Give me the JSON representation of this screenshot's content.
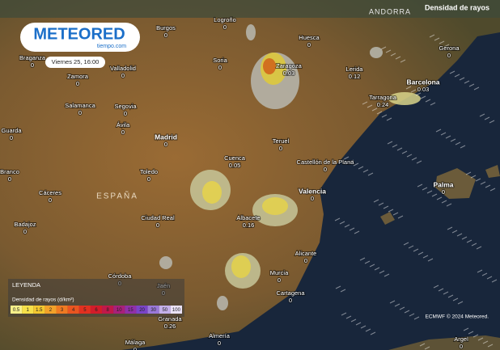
{
  "logo": {
    "brand": "METEORED",
    "site": "tiempo.com"
  },
  "timestamp": "Viernes 25, 16:00",
  "layer_title": "Densidad de rayos",
  "country_labels": [
    "ESPAÑA",
    "ANDORRA"
  ],
  "cities": [
    {
      "name": "Burgos",
      "value": 0
    },
    {
      "name": "Logroño",
      "value": 0
    },
    {
      "name": "Soria",
      "value": 0
    },
    {
      "name": "Valladolid",
      "value": 0
    },
    {
      "name": "Zamora",
      "value": 0
    },
    {
      "name": "Braganza",
      "value": 0
    },
    {
      "name": "Huesca",
      "value": 0
    },
    {
      "name": "Gerona",
      "value": 0
    },
    {
      "name": "Zaragoza",
      "value": 0.03
    },
    {
      "name": "Lerida",
      "value": 0.12
    },
    {
      "name": "Barcelona",
      "value": 0.03
    },
    {
      "name": "Tarragona",
      "value": 0.24
    },
    {
      "name": "Salamanca",
      "value": 0
    },
    {
      "name": "Segovia",
      "value": 0
    },
    {
      "name": "Ávila",
      "value": 0
    },
    {
      "name": "Guarda",
      "value": 0
    },
    {
      "name": "Madrid",
      "value": 0
    },
    {
      "name": "Teruel",
      "value": 0
    },
    {
      "name": "Cuenca",
      "value": 0.05
    },
    {
      "name": "Castellón de la Plana",
      "value": 0
    },
    {
      "name": "Toledo",
      "value": 0
    },
    {
      "name": "Cáceres",
      "value": 0
    },
    {
      "name": "Branco",
      "value": 0
    },
    {
      "name": "Valencia",
      "value": 0
    },
    {
      "name": "Palma",
      "value": 0
    },
    {
      "name": "Badajoz",
      "value": 0
    },
    {
      "name": "Ciudad Real",
      "value": 0
    },
    {
      "name": "Albacete",
      "value": 0.16
    },
    {
      "name": "Alicante",
      "value": 0
    },
    {
      "name": "Murcia",
      "value": 0
    },
    {
      "name": "Córdoba",
      "value": 0
    },
    {
      "name": "Jaén",
      "value": 0
    },
    {
      "name": "Cartagena",
      "value": 0
    },
    {
      "name": "Granada",
      "value": 0.26
    },
    {
      "name": "Almería",
      "value": 0
    },
    {
      "name": "Málaga",
      "value": 0
    },
    {
      "name": "Argel",
      "value": 0
    }
  ],
  "legend": {
    "heading": "LEYENDA",
    "title": "Densidad de rayos (d/km²)",
    "scale": [
      "0.5",
      "1",
      "1.5",
      "2",
      "3",
      "4",
      "5",
      "6",
      "8",
      "10",
      "15",
      "20",
      "30",
      "50",
      "100"
    ]
  },
  "credit": "ECMWF © 2024 Meteored."
}
